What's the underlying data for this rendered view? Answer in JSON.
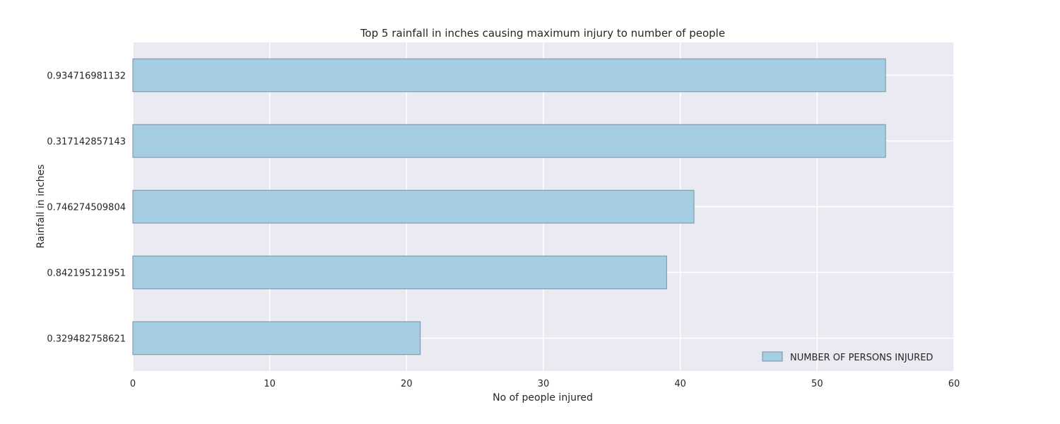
{
  "chart_data": {
    "type": "bar",
    "orientation": "horizontal",
    "title": "Top 5 rainfall in inches causing maximum injury to number of people",
    "xlabel": "No of people injured",
    "ylabel": "Rainfall in inches",
    "categories": [
      "0.934716981132",
      "0.317142857143",
      "0.746274509804",
      "0.842195121951",
      "0.329482758621"
    ],
    "series": [
      {
        "name": "NUMBER OF PERSONS INJURED",
        "values": [
          55,
          55,
          41,
          39,
          21
        ]
      }
    ],
    "xlim": [
      0,
      60
    ],
    "xticks": [
      0,
      10,
      20,
      30,
      40,
      50,
      60
    ],
    "grid": true,
    "legend": "bottom-right",
    "colors": {
      "bar_fill": "#a6cee3",
      "bar_edge": "#7a8fa0",
      "plot_bg": "#eaeaf2",
      "grid": "#ffffff",
      "text": "#262626"
    }
  }
}
